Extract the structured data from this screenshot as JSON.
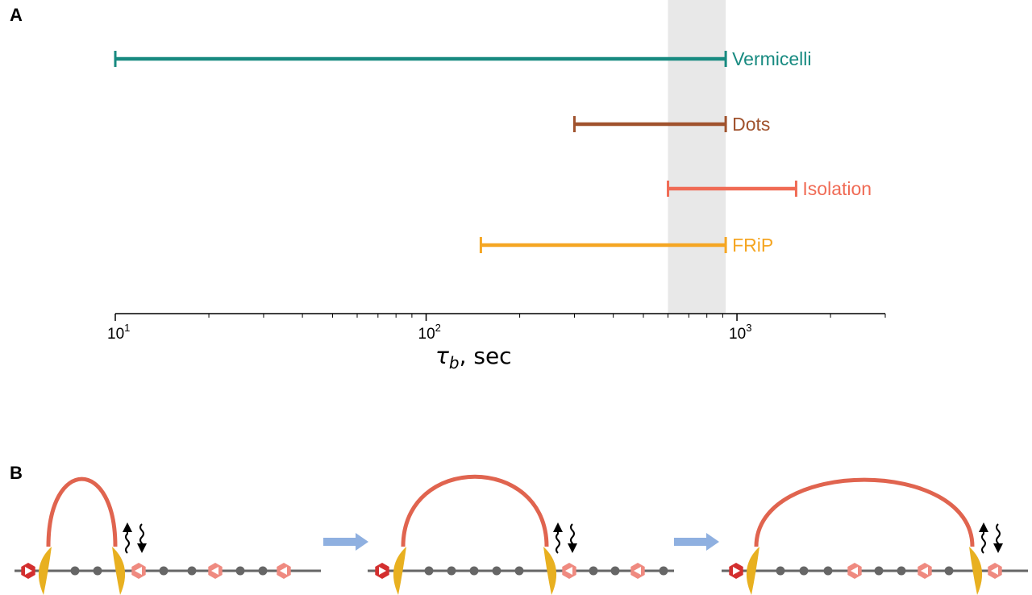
{
  "panels": {
    "a_label": "A",
    "b_label": "B"
  },
  "chart_data": {
    "type": "range",
    "xscale": "log",
    "xlim": [
      10,
      3000
    ],
    "xlabel": "τ_b, sec",
    "xlabel_symbol": "τ",
    "xlabel_subscript": "b",
    "xlabel_rest": ", sec",
    "xticks": [
      {
        "base": "10",
        "exp": "1",
        "value": 10
      },
      {
        "base": "10",
        "exp": "2",
        "value": 100
      },
      {
        "base": "10",
        "exp": "3",
        "value": 1000
      }
    ],
    "highlight_band": {
      "from": 600,
      "to": 920,
      "color": "#e8e8e8"
    },
    "series": [
      {
        "name": "Vermicelli",
        "low": 10,
        "high": 920,
        "color": "#178a80"
      },
      {
        "name": "Dots",
        "low": 300,
        "high": 920,
        "color": "#a0522d"
      },
      {
        "name": "Isolation",
        "low": 600,
        "high": 1550,
        "color": "#f06b55"
      },
      {
        "name": "FRiP",
        "low": 150,
        "high": 920,
        "color": "#f5a623"
      }
    ]
  },
  "schematic": {
    "colors": {
      "loop": "#e0644f",
      "extruder": "#e8b020",
      "ctcf_strong": "#d32f2f",
      "ctcf_weak": "#ef8a80",
      "chromatin": "#666666",
      "arrow": "#8fb0e0"
    },
    "steps": 3
  }
}
